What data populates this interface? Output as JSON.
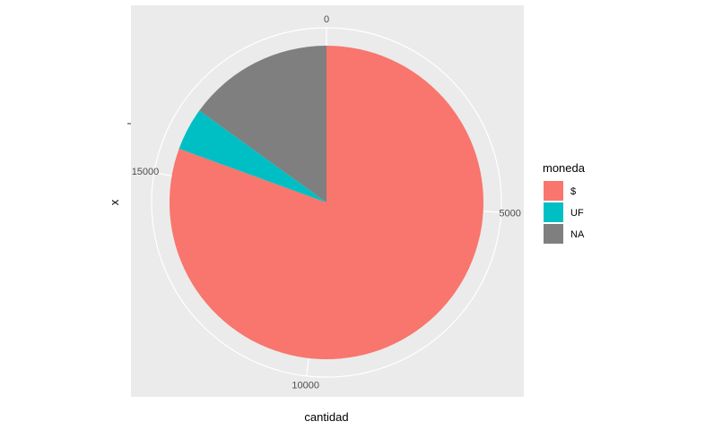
{
  "chart_data": {
    "type": "pie",
    "coord": "polar",
    "xlabel": "cantidad",
    "ylabel": "x",
    "radial_ticks": [
      "0",
      "5000",
      "10000",
      "15000"
    ],
    "radial_tick_values": [
      0,
      5000,
      10000,
      15000
    ],
    "total": 19300,
    "grid": true,
    "legend": {
      "title": "moneda",
      "placement": "right",
      "entries": [
        "$",
        "UF",
        "NA"
      ]
    },
    "categories": [
      "$",
      "UF",
      "NA"
    ],
    "values": [
      15550,
      850,
      2900
    ],
    "colors": [
      "#F8766D",
      "#00BFC4",
      "#7F7F7F"
    ]
  }
}
